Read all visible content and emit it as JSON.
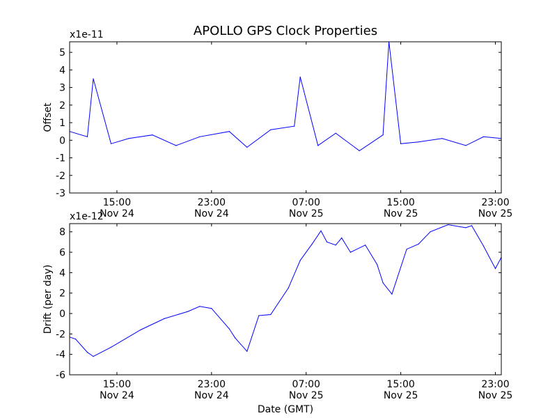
{
  "chart_data": {
    "title": "APOLLO GPS Clock Properties",
    "xlabel": "Date (GMT)",
    "x_ticks": [
      {
        "time": "15:00",
        "date": "Nov 24"
      },
      {
        "time": "23:00",
        "date": "Nov 24"
      },
      {
        "time": "07:00",
        "date": "Nov 25"
      },
      {
        "time": "15:00",
        "date": "Nov 25"
      },
      {
        "time": "23:00",
        "date": "Nov 25"
      }
    ],
    "panels": [
      {
        "type": "line",
        "ylabel": "Offset",
        "y_scale_label": "x1e-11",
        "ylim": [
          -3,
          5.6
        ],
        "yticks": [
          -3,
          -2,
          -1,
          0,
          1,
          2,
          3,
          4,
          5
        ],
        "color": "#0000ff",
        "series": [
          {
            "x": [
              "Nov 24 11:00",
              "Nov 24 12:30",
              "Nov 24 13:00",
              "Nov 24 14:30",
              "Nov 24 16:00",
              "Nov 24 18:00",
              "Nov 24 20:00",
              "Nov 24 22:00",
              "Nov 25 00:30",
              "Nov 25 02:00",
              "Nov 25 04:00",
              "Nov 25 06:00",
              "Nov 25 06:30",
              "Nov 25 08:00",
              "Nov 25 09:30",
              "Nov 25 11:30",
              "Nov 25 13:30",
              "Nov 25 14:00",
              "Nov 25 15:00",
              "Nov 25 16:30",
              "Nov 25 18:30",
              "Nov 25 20:30",
              "Nov 25 22:00",
              "Nov 25 23:30"
            ],
            "y": [
              0.5,
              0.2,
              3.5,
              -0.2,
              0.1,
              0.3,
              -0.3,
              0.2,
              0.5,
              -0.4,
              0.6,
              0.8,
              3.6,
              -0.3,
              0.4,
              -0.6,
              0.3,
              5.6,
              -0.2,
              -0.1,
              0.1,
              -0.3,
              0.2,
              0.1
            ]
          }
        ]
      },
      {
        "type": "line",
        "ylabel": "Drift (per day)",
        "y_scale_label": "x1e-12",
        "ylim": [
          -6,
          8.8
        ],
        "yticks": [
          -6,
          -4,
          -2,
          0,
          2,
          4,
          6,
          8
        ],
        "color": "#0000ff",
        "series": [
          {
            "x": [
              "Nov 24 11:00",
              "Nov 24 11:30",
              "Nov 24 12:30",
              "Nov 24 13:00",
              "Nov 24 14:30",
              "Nov 24 17:00",
              "Nov 24 19:00",
              "Nov 24 21:00",
              "Nov 24 22:00",
              "Nov 24 23:00",
              "Nov 25 00:30",
              "Nov 25 01:00",
              "Nov 25 02:00",
              "Nov 25 03:00",
              "Nov 25 04:00",
              "Nov 25 05:30",
              "Nov 25 06:30",
              "Nov 25 07:30",
              "Nov 25 08:15",
              "Nov 25 08:45",
              "Nov 25 09:30",
              "Nov 25 10:00",
              "Nov 25 10:45",
              "Nov 25 12:00",
              "Nov 25 13:00",
              "Nov 25 13:30",
              "Nov 25 14:15",
              "Nov 25 15:30",
              "Nov 25 16:30",
              "Nov 25 17:30",
              "Nov 25 19:00",
              "Nov 25 20:30",
              "Nov 25 21:00",
              "Nov 25 22:00",
              "Nov 25 23:00",
              "Nov 25 23:30"
            ],
            "y": [
              -2.3,
              -2.5,
              -3.8,
              -4.2,
              -3.3,
              -1.6,
              -0.5,
              0.2,
              0.7,
              0.5,
              -1.5,
              -2.4,
              -3.7,
              -0.2,
              -0.1,
              2.5,
              5.2,
              6.8,
              8.1,
              7.0,
              6.7,
              7.4,
              6.0,
              6.7,
              4.8,
              3.0,
              1.9,
              6.3,
              6.8,
              8.0,
              8.7,
              8.4,
              8.6,
              6.6,
              4.4,
              5.5
            ]
          }
        ]
      }
    ]
  }
}
